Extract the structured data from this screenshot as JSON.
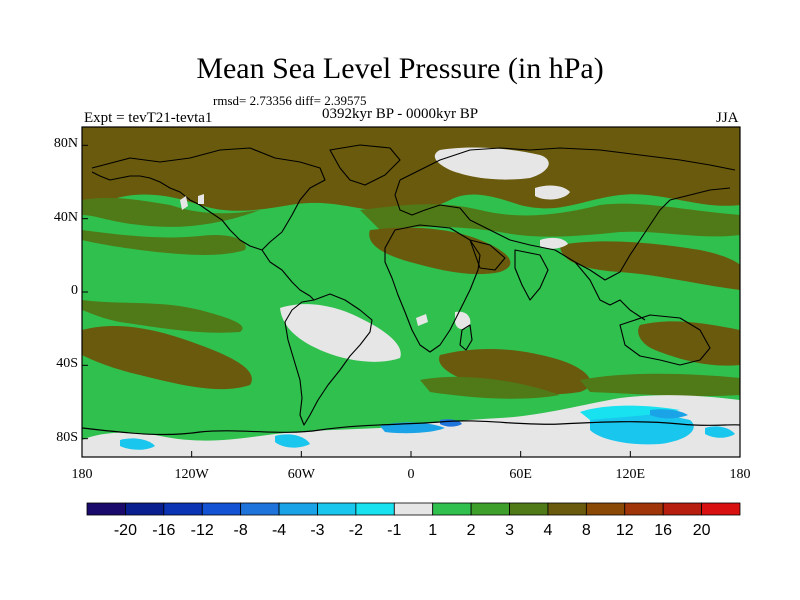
{
  "title": "Mean Sea Level Pressure (in hPa)",
  "stats": "rmsd= 2.73356 diff= 2.39575",
  "period": "0392kyr BP - 0000kyr BP",
  "experiment": "Expt = tevT21-tevta1",
  "season": "JJA",
  "map": {
    "type": "global filled-contour difference map",
    "projection": "cylindrical equidistant",
    "lat_range": [
      -90,
      90
    ],
    "lon_range": [
      -180,
      180
    ],
    "y_ticks": [
      "80N",
      "40N",
      "0",
      "40S",
      "80S"
    ],
    "x_ticks": [
      "180",
      "120W",
      "60W",
      "0",
      "60E",
      "120E",
      "180"
    ]
  },
  "colorbar": {
    "levels": [
      "-20",
      "-16",
      "-12",
      "-8",
      "-4",
      "-3",
      "-2",
      "-1",
      "1",
      "2",
      "3",
      "4",
      "8",
      "12",
      "16",
      "20"
    ],
    "colors": [
      "#1a0a6b",
      "#0a1f8f",
      "#0a34b4",
      "#1352d2",
      "#1f74dc",
      "#1aa3e6",
      "#19c6ed",
      "#18e2f0",
      "#e6e6e6",
      "#2fc04e",
      "#3f9f2b",
      "#4f7a17",
      "#6a5a0d",
      "#8a4a06",
      "#a0350a",
      "#b81e0d",
      "#d81010"
    ]
  }
}
